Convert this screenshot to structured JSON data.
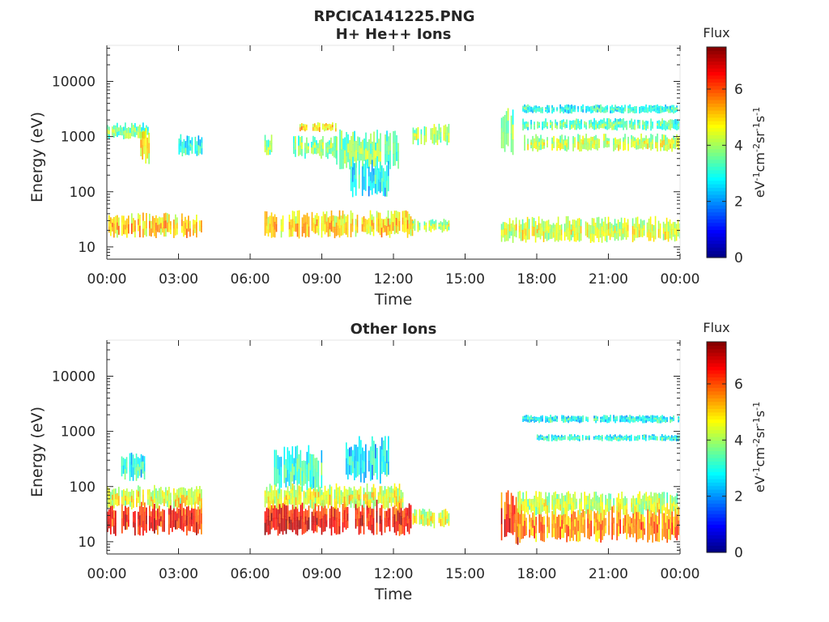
{
  "figure_title": "RPCICA141225.PNG",
  "chart_data": [
    {
      "type": "heatmap",
      "title": "H+ He++ Ions",
      "xlabel": "Time",
      "ylabel": "Energy (eV)",
      "x_ticks": [
        "00:00",
        "03:00",
        "06:00",
        "09:00",
        "12:00",
        "15:00",
        "18:00",
        "21:00",
        "00:00"
      ],
      "x_range_hours": [
        0,
        24
      ],
      "y_scale": "log",
      "y_ticks": [
        10,
        100,
        1000,
        10000
      ],
      "y_tick_labels": [
        "10",
        "100",
        "1000",
        "10000"
      ],
      "y_range": [
        6,
        45000
      ],
      "colorbar": {
        "label": "Flux",
        "units_text": "eV-1cm-2sr-1s-1",
        "ticks": [
          0,
          2,
          4,
          6
        ],
        "range": [
          0,
          7.5
        ]
      },
      "data_gaps_hours": [
        [
          4.0,
          6.6
        ],
        [
          14.3,
          16.5
        ]
      ],
      "bands": [
        {
          "t0": 0.0,
          "t1": 4.0,
          "e_lo": 17,
          "e_hi": 35,
          "flux": 4.8
        },
        {
          "t0": 6.6,
          "t1": 12.8,
          "e_lo": 17,
          "e_hi": 38,
          "flux": 4.7
        },
        {
          "t0": 12.8,
          "t1": 14.3,
          "e_lo": 20,
          "e_hi": 30,
          "flux": 4.0
        },
        {
          "t0": 16.5,
          "t1": 24.0,
          "e_lo": 14,
          "e_hi": 30,
          "flux": 4.2
        },
        {
          "t0": 0.0,
          "t1": 1.7,
          "e_lo": 1000,
          "e_hi": 1600,
          "flux": 3.4
        },
        {
          "t0": 1.4,
          "t1": 1.8,
          "e_lo": 400,
          "e_hi": 1200,
          "flux": 4.6
        },
        {
          "t0": 3.0,
          "t1": 4.0,
          "e_lo": 500,
          "e_hi": 950,
          "flux": 2.7
        },
        {
          "t0": 6.6,
          "t1": 7.0,
          "e_lo": 500,
          "e_hi": 1000,
          "flux": 3.6
        },
        {
          "t0": 7.8,
          "t1": 9.6,
          "e_lo": 450,
          "e_hi": 900,
          "flux": 3.6
        },
        {
          "t0": 8.0,
          "t1": 9.6,
          "e_lo": 1300,
          "e_hi": 1700,
          "flux": 4.6
        },
        {
          "t0": 9.6,
          "t1": 12.2,
          "e_lo": 300,
          "e_hi": 1000,
          "flux": 3.4
        },
        {
          "t0": 10.2,
          "t1": 11.8,
          "e_lo": 100,
          "e_hi": 300,
          "flux": 2.6
        },
        {
          "t0": 12.8,
          "t1": 14.3,
          "e_lo": 800,
          "e_hi": 1500,
          "flux": 3.8
        },
        {
          "t0": 16.5,
          "t1": 17.0,
          "e_lo": 600,
          "e_hi": 2500,
          "flux": 3.6
        },
        {
          "t0": 17.4,
          "t1": 24.0,
          "e_lo": 600,
          "e_hi": 1000,
          "flux": 4.1
        },
        {
          "t0": 17.4,
          "t1": 24.0,
          "e_lo": 1400,
          "e_hi": 2000,
          "flux": 3.2
        },
        {
          "t0": 17.4,
          "t1": 24.0,
          "e_lo": 2800,
          "e_hi": 3600,
          "flux": 2.8
        }
      ]
    },
    {
      "type": "heatmap",
      "title": "Other Ions",
      "xlabel": "Time",
      "ylabel": "Energy (eV)",
      "x_ticks": [
        "00:00",
        "03:00",
        "06:00",
        "09:00",
        "12:00",
        "15:00",
        "18:00",
        "21:00",
        "00:00"
      ],
      "x_range_hours": [
        0,
        24
      ],
      "y_scale": "log",
      "y_ticks": [
        10,
        100,
        1000,
        10000
      ],
      "y_tick_labels": [
        "10",
        "100",
        "1000",
        "10000"
      ],
      "y_range": [
        6,
        45000
      ],
      "colorbar": {
        "label": "Flux",
        "units_text": "eV-1cm-2sr-1s-1",
        "ticks": [
          0,
          2,
          4,
          6
        ],
        "range": [
          0,
          7.5
        ]
      },
      "data_gaps_hours": [
        [
          4.0,
          6.6
        ],
        [
          14.3,
          16.5
        ]
      ],
      "bands": [
        {
          "t0": 0.0,
          "t1": 4.0,
          "e_lo": 16,
          "e_hi": 45,
          "flux": 6.3
        },
        {
          "t0": 0.0,
          "t1": 4.0,
          "e_lo": 45,
          "e_hi": 90,
          "flux": 4.3
        },
        {
          "t0": 0.6,
          "t1": 1.6,
          "e_lo": 150,
          "e_hi": 350,
          "flux": 2.7
        },
        {
          "t0": 6.6,
          "t1": 12.8,
          "e_lo": 16,
          "e_hi": 45,
          "flux": 6.4
        },
        {
          "t0": 6.6,
          "t1": 12.4,
          "e_lo": 45,
          "e_hi": 95,
          "flux": 4.3
        },
        {
          "t0": 7.0,
          "t1": 9.0,
          "e_lo": 100,
          "e_hi": 400,
          "flux": 3.0
        },
        {
          "t0": 10.0,
          "t1": 11.8,
          "e_lo": 150,
          "e_hi": 600,
          "flux": 2.5
        },
        {
          "t0": 12.8,
          "t1": 14.3,
          "e_lo": 20,
          "e_hi": 35,
          "flux": 4.2
        },
        {
          "t0": 16.5,
          "t1": 17.2,
          "e_lo": 12,
          "e_hi": 60,
          "flux": 6.0
        },
        {
          "t0": 17.2,
          "t1": 24.0,
          "e_lo": 12,
          "e_hi": 35,
          "flux": 5.3
        },
        {
          "t0": 17.2,
          "t1": 24.0,
          "e_lo": 35,
          "e_hi": 70,
          "flux": 4.0
        },
        {
          "t0": 17.4,
          "t1": 24.0,
          "e_lo": 1500,
          "e_hi": 1900,
          "flux": 2.7
        },
        {
          "t0": 18.0,
          "t1": 24.0,
          "e_lo": 700,
          "e_hi": 850,
          "flux": 2.8
        }
      ]
    }
  ]
}
